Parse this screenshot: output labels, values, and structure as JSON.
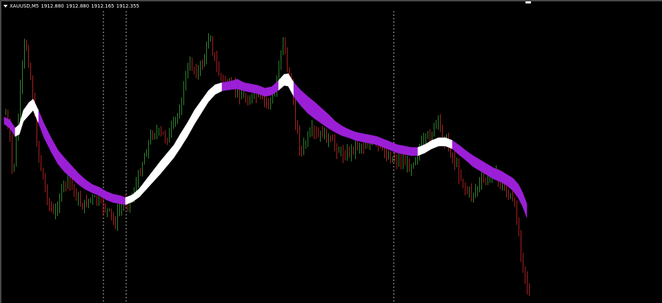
{
  "header": {
    "symbol": "XAUUSD,M5",
    "open": "1912.880",
    "high": "1912.880",
    "low": "1912.165",
    "close": "1912.355"
  },
  "colors": {
    "background": "#000000",
    "bull_candle": "#2e8b2e",
    "bear_candle": "#b22222",
    "ribbon_down": "#9b1fd6",
    "ribbon_up": "#ffffff",
    "separator": "#bfbfbf"
  },
  "icons": {
    "menu": "triangle-down-icon"
  }
}
